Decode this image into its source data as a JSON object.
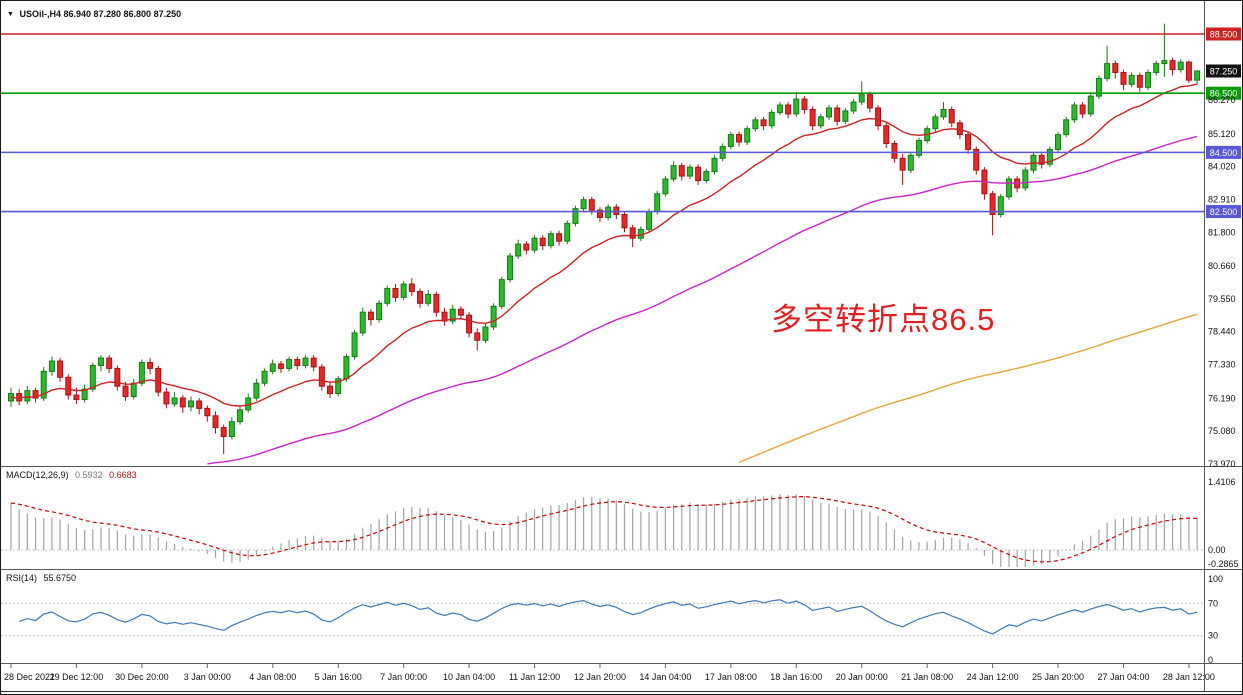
{
  "window": {
    "symbol_label": "USOil-,H4",
    "ohlc_label": "86.940 87.280 86.800 87.250",
    "dropdown_icon": "▼"
  },
  "annotation": {
    "text": "多空转折点86.5",
    "color": "#e41f1f"
  },
  "colors": {
    "candle_up": "#2eb82e",
    "candle_up_border": "#157a15",
    "candle_down": "#e32929",
    "candle_down_border": "#a81111",
    "divider": "#5a5a5a",
    "axis_text": "#111111",
    "background": "#ffffff"
  },
  "chart_data": {
    "type": "candlestick-with-indicators",
    "symbol": "USOil-",
    "timeframe": "H4",
    "current_bar": {
      "open": 86.94,
      "high": 87.28,
      "low": 86.8,
      "close": 87.25
    },
    "price_axis_ticks": [
      "86.270",
      "85.120",
      "84.020",
      "82.910",
      "81.800",
      "80.660",
      "79.550",
      "78.440",
      "77.330",
      "76.190",
      "75.080",
      "73.970"
    ],
    "levels": [
      {
        "price": 88.5,
        "label": "88.500",
        "color": "#cc2222",
        "line": true
      },
      {
        "price": 87.25,
        "label": "87.250",
        "color": "#111111",
        "line": false
      },
      {
        "price": 86.5,
        "label": "86.500",
        "color": "#089b08",
        "line": true
      },
      {
        "price": 84.5,
        "label": "84.500",
        "color": "#5658d8",
        "line": true
      },
      {
        "price": 82.5,
        "label": "82.500",
        "color": "#5658d8",
        "line": true
      }
    ],
    "time_labels": [
      "28 Dec 2021",
      "29 Dec 12:00",
      "30 Dec 20:00",
      "3 Jan 00:00",
      "4 Jan 08:00",
      "5 Jan 16:00",
      "7 Jan 00:00",
      "10 Jan 04:00",
      "11 Jan 12:00",
      "12 Jan 20:00",
      "14 Jan 04:00",
      "17 Jan 08:00",
      "18 Jan 16:00",
      "20 Jan 00:00",
      "21 Jan 08:00",
      "24 Jan 12:00",
      "25 Jan 20:00",
      "27 Jan 04:00",
      "28 Jan 12:00"
    ],
    "bars_per_label": 8,
    "candles": [
      [
        76.1,
        76.55,
        75.9,
        76.35
      ],
      [
        76.35,
        76.5,
        75.95,
        76.1
      ],
      [
        76.1,
        76.6,
        76.0,
        76.45
      ],
      [
        76.45,
        76.55,
        76.05,
        76.2
      ],
      [
        76.2,
        77.25,
        76.1,
        77.1
      ],
      [
        77.1,
        77.6,
        76.95,
        77.45
      ],
      [
        77.45,
        77.55,
        76.75,
        76.9
      ],
      [
        76.9,
        77.0,
        76.15,
        76.3
      ],
      [
        76.3,
        76.55,
        76.0,
        76.15
      ],
      [
        76.15,
        76.65,
        76.05,
        76.5
      ],
      [
        76.5,
        77.4,
        76.4,
        77.3
      ],
      [
        77.3,
        77.65,
        77.1,
        77.55
      ],
      [
        77.55,
        77.65,
        77.05,
        77.2
      ],
      [
        77.2,
        77.3,
        76.45,
        76.6
      ],
      [
        76.6,
        76.75,
        76.1,
        76.25
      ],
      [
        76.25,
        76.85,
        76.15,
        76.7
      ],
      [
        76.7,
        77.5,
        76.6,
        77.4
      ],
      [
        77.4,
        77.55,
        77.0,
        77.2
      ],
      [
        77.2,
        77.3,
        76.25,
        76.4
      ],
      [
        76.4,
        76.55,
        75.85,
        76.0
      ],
      [
        76.0,
        76.4,
        75.9,
        76.2
      ],
      [
        76.2,
        76.3,
        75.7,
        75.9
      ],
      [
        75.9,
        76.25,
        75.75,
        76.1
      ],
      [
        76.1,
        76.2,
        75.65,
        75.85
      ],
      [
        75.85,
        75.95,
        75.4,
        75.6
      ],
      [
        75.6,
        75.75,
        75.0,
        75.2
      ],
      [
        75.2,
        75.3,
        74.3,
        74.9
      ],
      [
        74.9,
        75.55,
        74.8,
        75.4
      ],
      [
        75.4,
        75.95,
        75.3,
        75.8
      ],
      [
        75.8,
        76.35,
        75.7,
        76.2
      ],
      [
        76.2,
        76.85,
        76.1,
        76.7
      ],
      [
        76.7,
        77.2,
        76.6,
        77.1
      ],
      [
        77.1,
        77.5,
        77.0,
        77.35
      ],
      [
        77.35,
        77.45,
        77.05,
        77.2
      ],
      [
        77.2,
        77.6,
        77.1,
        77.5
      ],
      [
        77.5,
        77.6,
        77.15,
        77.3
      ],
      [
        77.3,
        77.65,
        77.2,
        77.55
      ],
      [
        77.55,
        77.65,
        77.1,
        77.25
      ],
      [
        77.25,
        77.35,
        76.45,
        76.6
      ],
      [
        76.6,
        76.75,
        76.2,
        76.35
      ],
      [
        76.35,
        76.95,
        76.25,
        76.85
      ],
      [
        76.85,
        77.7,
        76.75,
        77.6
      ],
      [
        77.6,
        78.5,
        77.5,
        78.4
      ],
      [
        78.4,
        79.25,
        78.3,
        79.1
      ],
      [
        79.1,
        79.2,
        78.65,
        78.85
      ],
      [
        78.85,
        79.5,
        78.75,
        79.4
      ],
      [
        79.4,
        80.0,
        79.3,
        79.9
      ],
      [
        79.9,
        80.05,
        79.45,
        79.6
      ],
      [
        79.6,
        80.15,
        79.5,
        80.05
      ],
      [
        80.05,
        80.25,
        79.65,
        79.8
      ],
      [
        79.8,
        79.9,
        79.25,
        79.4
      ],
      [
        79.4,
        79.85,
        79.3,
        79.7
      ],
      [
        79.7,
        79.8,
        78.95,
        79.1
      ],
      [
        79.1,
        79.25,
        78.65,
        78.8
      ],
      [
        78.8,
        79.35,
        78.7,
        79.2
      ],
      [
        79.2,
        79.3,
        78.85,
        79.0
      ],
      [
        79.0,
        79.1,
        78.25,
        78.4
      ],
      [
        78.4,
        78.55,
        77.8,
        78.15
      ],
      [
        78.15,
        78.7,
        78.05,
        78.6
      ],
      [
        78.6,
        79.4,
        78.5,
        79.3
      ],
      [
        79.3,
        80.3,
        79.2,
        80.2
      ],
      [
        80.2,
        81.1,
        80.1,
        81.0
      ],
      [
        81.0,
        81.55,
        80.9,
        81.4
      ],
      [
        81.4,
        81.5,
        81.05,
        81.2
      ],
      [
        81.2,
        81.7,
        81.1,
        81.6
      ],
      [
        81.6,
        81.7,
        81.2,
        81.35
      ],
      [
        81.35,
        81.85,
        81.25,
        81.75
      ],
      [
        81.75,
        81.85,
        81.35,
        81.5
      ],
      [
        81.5,
        82.2,
        81.4,
        82.1
      ],
      [
        82.1,
        82.7,
        82.0,
        82.6
      ],
      [
        82.6,
        83.0,
        82.5,
        82.9
      ],
      [
        82.9,
        83.0,
        82.4,
        82.55
      ],
      [
        82.55,
        82.65,
        82.15,
        82.3
      ],
      [
        82.3,
        82.75,
        82.2,
        82.65
      ],
      [
        82.65,
        82.75,
        82.25,
        82.4
      ],
      [
        82.4,
        82.5,
        81.8,
        81.95
      ],
      [
        81.95,
        82.05,
        81.3,
        81.6
      ],
      [
        81.6,
        82.0,
        81.5,
        81.9
      ],
      [
        81.9,
        82.6,
        81.8,
        82.5
      ],
      [
        82.5,
        83.2,
        82.4,
        83.1
      ],
      [
        83.1,
        83.7,
        83.0,
        83.6
      ],
      [
        83.6,
        84.2,
        83.5,
        84.05
      ],
      [
        84.05,
        84.15,
        83.55,
        83.7
      ],
      [
        83.7,
        84.1,
        83.6,
        84.0
      ],
      [
        84.0,
        84.1,
        83.4,
        83.55
      ],
      [
        83.55,
        83.95,
        83.45,
        83.85
      ],
      [
        83.85,
        84.4,
        83.75,
        84.3
      ],
      [
        84.3,
        84.8,
        84.2,
        84.7
      ],
      [
        84.7,
        85.2,
        84.6,
        85.1
      ],
      [
        85.1,
        85.2,
        84.7,
        84.85
      ],
      [
        84.85,
        85.4,
        84.75,
        85.3
      ],
      [
        85.3,
        85.7,
        85.2,
        85.6
      ],
      [
        85.6,
        85.7,
        85.25,
        85.4
      ],
      [
        85.4,
        85.95,
        85.3,
        85.85
      ],
      [
        85.85,
        86.2,
        85.75,
        86.1
      ],
      [
        86.1,
        86.2,
        85.65,
        85.8
      ],
      [
        85.8,
        86.55,
        85.7,
        86.3
      ],
      [
        86.3,
        86.4,
        85.8,
        85.95
      ],
      [
        85.95,
        86.05,
        85.25,
        85.4
      ],
      [
        85.4,
        85.8,
        85.3,
        85.7
      ],
      [
        85.7,
        86.1,
        85.6,
        86.0
      ],
      [
        86.0,
        86.1,
        85.4,
        85.55
      ],
      [
        85.55,
        86.0,
        85.45,
        85.9
      ],
      [
        85.9,
        86.3,
        85.8,
        86.2
      ],
      [
        86.2,
        86.9,
        86.1,
        86.45
      ],
      [
        86.45,
        86.55,
        85.85,
        86.0
      ],
      [
        86.0,
        86.1,
        85.25,
        85.4
      ],
      [
        85.4,
        85.5,
        84.65,
        84.8
      ],
      [
        84.8,
        84.9,
        84.15,
        84.3
      ],
      [
        84.3,
        84.45,
        83.4,
        83.9
      ],
      [
        83.9,
        84.5,
        83.8,
        84.4
      ],
      [
        84.4,
        85.0,
        84.3,
        84.9
      ],
      [
        84.9,
        85.4,
        84.8,
        85.3
      ],
      [
        85.3,
        85.8,
        85.2,
        85.7
      ],
      [
        85.7,
        86.2,
        85.6,
        85.95
      ],
      [
        85.95,
        86.05,
        85.35,
        85.5
      ],
      [
        85.5,
        85.6,
        84.95,
        85.1
      ],
      [
        85.1,
        85.2,
        84.45,
        84.6
      ],
      [
        84.6,
        84.7,
        83.75,
        83.9
      ],
      [
        83.9,
        84.0,
        82.9,
        83.1
      ],
      [
        83.1,
        83.2,
        81.7,
        82.4
      ],
      [
        82.4,
        83.1,
        82.3,
        83.0
      ],
      [
        83.0,
        83.7,
        82.9,
        83.6
      ],
      [
        83.6,
        83.7,
        83.15,
        83.3
      ],
      [
        83.3,
        84.0,
        83.2,
        83.9
      ],
      [
        83.9,
        84.5,
        83.8,
        84.4
      ],
      [
        84.4,
        84.5,
        83.95,
        84.1
      ],
      [
        84.1,
        84.7,
        84.0,
        84.6
      ],
      [
        84.6,
        85.2,
        84.5,
        85.1
      ],
      [
        85.1,
        85.7,
        85.0,
        85.6
      ],
      [
        85.6,
        86.2,
        85.5,
        86.1
      ],
      [
        86.1,
        86.2,
        85.65,
        85.8
      ],
      [
        85.8,
        86.5,
        85.7,
        86.4
      ],
      [
        86.4,
        87.1,
        86.3,
        87.0
      ],
      [
        87.0,
        88.1,
        86.9,
        87.5
      ],
      [
        87.5,
        87.6,
        87.0,
        87.2
      ],
      [
        87.2,
        87.3,
        86.6,
        86.8
      ],
      [
        86.8,
        87.2,
        86.7,
        87.1
      ],
      [
        87.1,
        87.2,
        86.55,
        86.7
      ],
      [
        86.7,
        87.3,
        86.6,
        87.2
      ],
      [
        87.2,
        87.6,
        87.1,
        87.5
      ],
      [
        87.5,
        88.85,
        87.05,
        87.6
      ],
      [
        87.6,
        87.7,
        87.1,
        87.3
      ],
      [
        87.3,
        87.65,
        87.2,
        87.55
      ],
      [
        87.55,
        87.6,
        86.85,
        86.94
      ],
      [
        86.94,
        87.28,
        86.8,
        87.25
      ]
    ],
    "moving_averages": [
      {
        "name": "ma-fast",
        "color": "#cc2222",
        "alpha": 0.12,
        "seed": 76.2
      },
      {
        "name": "ma-mid",
        "color": "#cc22cc",
        "alpha": 0.032,
        "seed": 70.8
      },
      {
        "name": "ma-slow",
        "color": "#e8a33d",
        "alpha": 0.01,
        "seed": 65.5
      }
    ],
    "macd": {
      "label": "MACD(12,26,9)",
      "value": "0.5932",
      "signal_value": "0.6683",
      "axis": [
        "1.4106",
        "0.00",
        "-0.2865"
      ],
      "histogram_color": "#a3a3a3",
      "signal_color": "#cc0000"
    },
    "rsi": {
      "label": "RSI(14)",
      "value": "55.6750",
      "axis": [
        "100",
        "70",
        "30",
        "0"
      ],
      "levels": [
        70,
        30
      ],
      "line_color": "#3b78b5"
    }
  }
}
